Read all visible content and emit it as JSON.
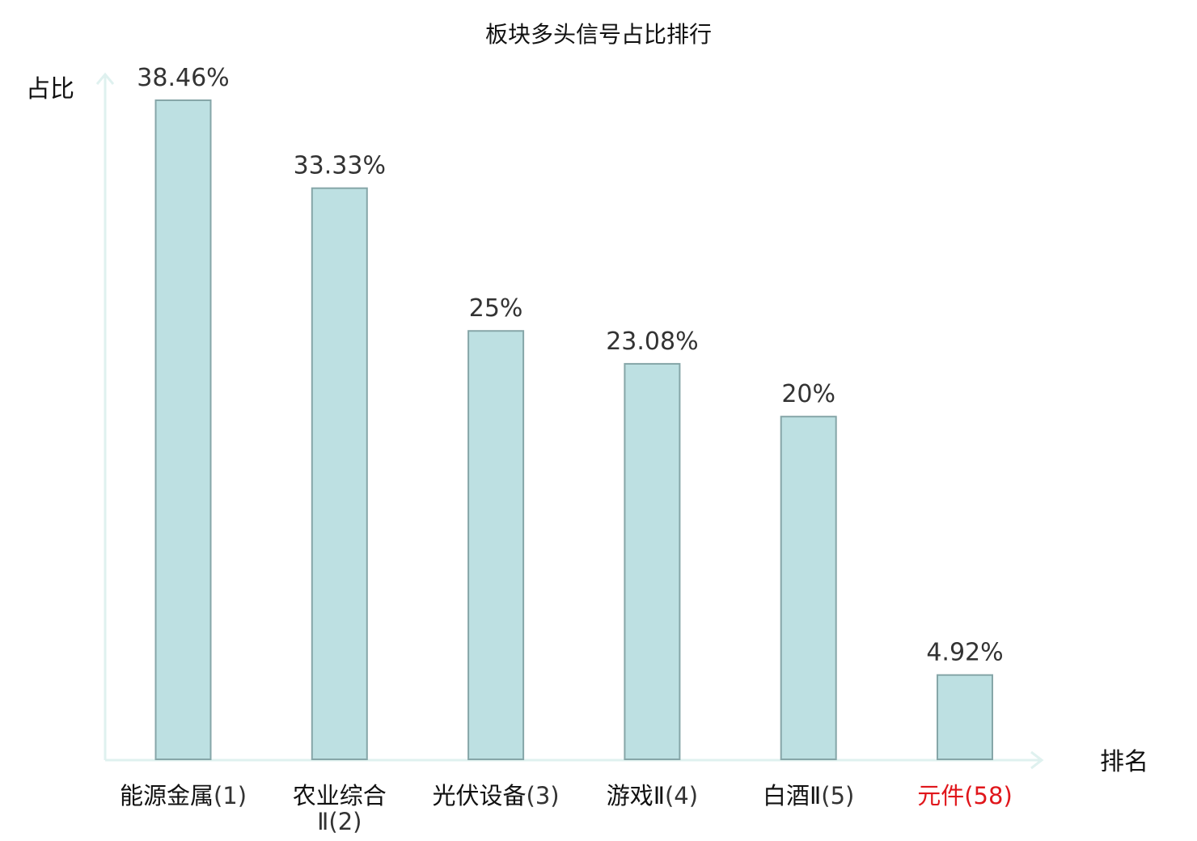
{
  "chart_data": {
    "type": "bar",
    "title": "板块多头信号占比排行",
    "ylabel": "占比",
    "xlabel": "排名",
    "categories": [
      {
        "name": "能源金属",
        "rank": "(1)",
        "highlight": false
      },
      {
        "name": "农业综合Ⅱ",
        "rank": "(2)",
        "highlight": false
      },
      {
        "name": "光伏设备",
        "rank": "(3)",
        "highlight": false
      },
      {
        "name": "游戏Ⅱ",
        "rank": "(4)",
        "highlight": false
      },
      {
        "name": "白酒Ⅱ",
        "rank": "(5)",
        "highlight": false
      },
      {
        "name": "元件",
        "rank": "(58)",
        "highlight": true
      }
    ],
    "values": [
      38.46,
      33.33,
      25,
      23.08,
      20,
      4.92
    ],
    "value_labels": [
      "38.46%",
      "33.33%",
      "25%",
      "23.08%",
      "20%",
      "4.92%"
    ],
    "ylim": [
      0,
      38.46
    ],
    "grid": false,
    "colors": {
      "bar_fill": "#bde0e2",
      "bar_stroke": "#86a6a8",
      "axis": "#dff1ef",
      "text": "#111111",
      "rank_text": "#333333",
      "highlight": "#e0161b"
    }
  }
}
